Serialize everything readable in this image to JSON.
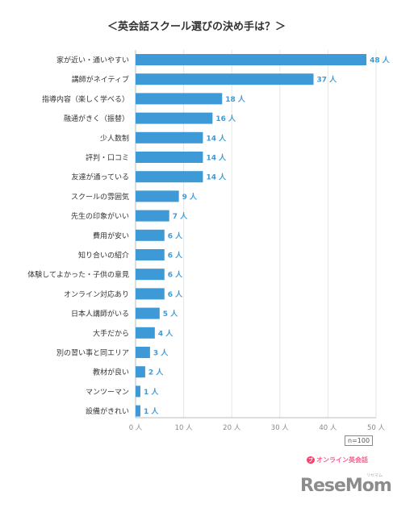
{
  "chart_data": {
    "type": "bar",
    "orientation": "horizontal",
    "title": "＜英会話スクール選びの決め手は？＞",
    "categories": [
      "家が近い・通いやすい",
      "講師がネイティブ",
      "指導内容（楽しく学べる）",
      "融通がきく（振替）",
      "少人数制",
      "評判・口コミ",
      "友達が通っている",
      "スクールの雰囲気",
      "先生の印象がいい",
      "費用が安い",
      "知り合いの紹介",
      "体験してよかった・子供の意見",
      "オンライン対応あり",
      "日本人講師がいる",
      "大手だから",
      "別の習い事と同エリア",
      "教材が良い",
      "マンツーマン",
      "設備がきれい"
    ],
    "values": [
      48,
      37,
      18,
      16,
      14,
      14,
      14,
      9,
      7,
      6,
      6,
      6,
      6,
      5,
      4,
      3,
      2,
      1,
      1
    ],
    "value_labels": [
      "48 人",
      "37 人",
      "18 人",
      "16 人",
      "14 人",
      "14 人",
      "14 人",
      "9 人",
      "7 人",
      "6 人",
      "6 人",
      "6 人",
      "6 人",
      "5 人",
      "4 人",
      "3 人",
      "2 人",
      "1 人",
      "1 人"
    ],
    "xlim": [
      0,
      50
    ],
    "x_ticks": [
      0,
      10,
      20,
      30,
      40,
      50
    ],
    "x_tick_labels": [
      "0 人",
      "10 人",
      "20 人",
      "30 人",
      "40 人",
      "50 人"
    ],
    "grid": true,
    "bar_color": "#3e9ad6",
    "value_label_color": "#3e9ad6",
    "note": "n=100"
  },
  "source": {
    "badge": "ブ",
    "text": "オンライン英会話"
  },
  "watermark": "ReseMom",
  "watermark_small": "リセマム"
}
